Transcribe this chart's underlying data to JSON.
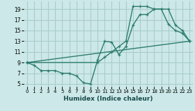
{
  "xlabel": "Humidex (Indice chaleur)",
  "bg_color": "#cce8e8",
  "grid_color": "#aacccc",
  "line_color": "#2d7d6e",
  "xlim": [
    -0.5,
    23.5
  ],
  "ylim": [
    4.5,
    20.5
  ],
  "xticks": [
    0,
    1,
    2,
    3,
    4,
    5,
    6,
    7,
    8,
    9,
    10,
    11,
    12,
    13,
    14,
    15,
    16,
    17,
    18,
    19,
    20,
    21,
    22,
    23
  ],
  "yticks": [
    5,
    7,
    9,
    11,
    13,
    15,
    17,
    19
  ],
  "line1_x": [
    0,
    1,
    2,
    3,
    4,
    5,
    6,
    7,
    8,
    9,
    10,
    11,
    12,
    13,
    14,
    15,
    16,
    17,
    18,
    19,
    20,
    21,
    22,
    23
  ],
  "line1_y": [
    9,
    8.5,
    7.5,
    7.5,
    7.5,
    7,
    7,
    6.5,
    5.2,
    5,
    9.5,
    13,
    12.8,
    10.5,
    12,
    16,
    18,
    18,
    19,
    19,
    19,
    16,
    15,
    13
  ],
  "line2_x": [
    0,
    10,
    11,
    12,
    13,
    14,
    15,
    16,
    17,
    18,
    19,
    20,
    21,
    22,
    23
  ],
  "line2_y": [
    9,
    9,
    10,
    11,
    12,
    13,
    19.5,
    19.5,
    19.5,
    19,
    19,
    16.2,
    15,
    14.5,
    13
  ],
  "line3_x": [
    0,
    23
  ],
  "line3_y": [
    9,
    13
  ]
}
